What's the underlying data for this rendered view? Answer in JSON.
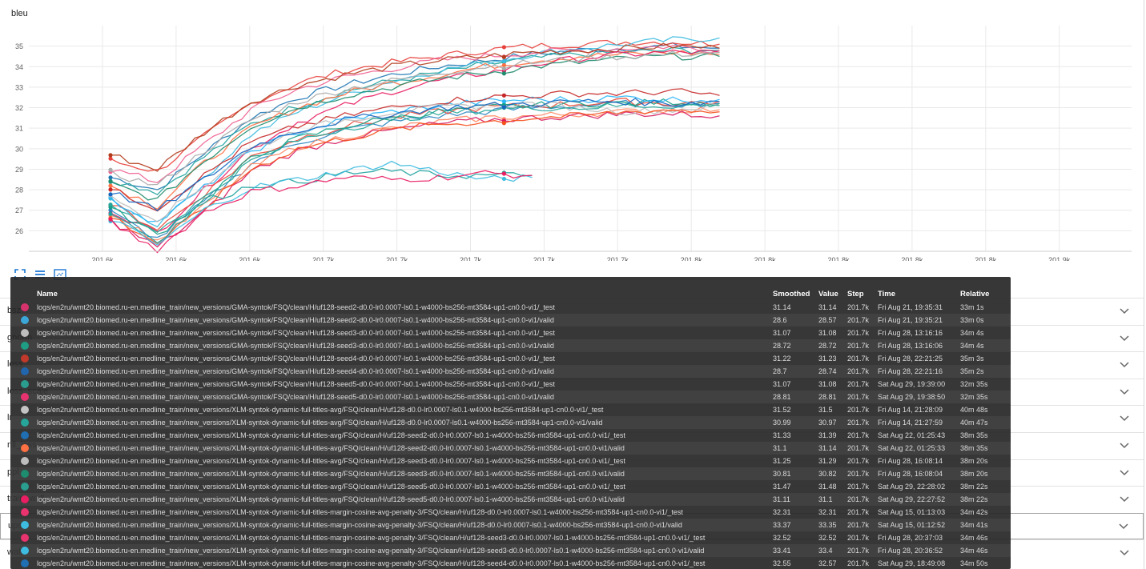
{
  "chart_title": "bleu",
  "toolbar": [
    {
      "name": "fit-domain-icon",
      "title": "Fit domain to data"
    },
    {
      "name": "toggle-legend-icon",
      "title": "Toggle legend"
    },
    {
      "name": "toggle-log-icon",
      "title": "Toggle y-axis log scale"
    }
  ],
  "chart_data": {
    "type": "line",
    "title": "bleu",
    "xlabel": "",
    "ylabel": "",
    "x_tick_labels": [
      "201.6k",
      "201.6k",
      "201.6k",
      "201.7k",
      "201.7k",
      "201.7k",
      "201.7k",
      "201.7k",
      "201.8k",
      "201.8k",
      "201.8k",
      "201.8k",
      "201.8k",
      "201.9k"
    ],
    "y_ticks": [
      26,
      27,
      28,
      29,
      30,
      31,
      32,
      33,
      34,
      35
    ],
    "ylim": [
      25.0,
      36.0
    ],
    "grid": true,
    "note": "many overlapping runs; values per series approximate",
    "series": [
      {
        "color": "#1f77b4",
        "values": [
          28.6,
          28.0,
          29.8,
          31.5,
          32.5,
          33.1,
          33.6,
          34.0,
          34.3,
          34.6,
          34.8,
          34.9,
          35.0,
          34.9
        ]
      },
      {
        "color": "#e8413c",
        "values": [
          29.4,
          28.9,
          30.6,
          32.2,
          33.2,
          33.8,
          34.2,
          34.5,
          34.8,
          35.0,
          35.1,
          35.2,
          35.2,
          35.1
        ]
      },
      {
        "color": "#20a39e",
        "values": [
          28.5,
          27.9,
          29.6,
          31.2,
          32.1,
          32.8,
          33.3,
          33.7,
          34.1,
          34.4,
          34.6,
          34.7,
          34.8,
          34.8
        ]
      },
      {
        "color": "#3dbbe0",
        "values": [
          27.4,
          26.3,
          28.6,
          30.7,
          31.8,
          32.6,
          33.3,
          33.8,
          34.2,
          34.6,
          34.9,
          35.1,
          35.3,
          35.4
        ]
      },
      {
        "color": "#f06292",
        "values": [
          29.0,
          28.4,
          30.2,
          31.9,
          32.9,
          33.5,
          33.9,
          34.3,
          34.5,
          34.7,
          34.8,
          34.9,
          35.0,
          34.8
        ]
      },
      {
        "color": "#ff7043",
        "values": [
          28.2,
          27.2,
          29.3,
          31.0,
          32.0,
          32.7,
          33.2,
          33.6,
          34.0,
          34.3,
          34.5,
          34.6,
          34.7,
          34.6
        ]
      },
      {
        "color": "#b23c1c",
        "values": [
          29.7,
          29.0,
          30.8,
          32.3,
          33.1,
          33.6,
          34.0,
          34.3,
          34.5,
          34.7,
          34.8,
          34.9,
          35.0,
          34.9
        ]
      },
      {
        "color": "#e91e63",
        "values": [
          27.0,
          25.9,
          28.0,
          30.0,
          31.3,
          32.1,
          32.8,
          33.3,
          33.7,
          34.1,
          34.4,
          34.6,
          34.7,
          34.7
        ]
      },
      {
        "color": "#1e8c6e",
        "values": [
          28.3,
          27.5,
          29.4,
          31.1,
          32.0,
          32.6,
          33.0,
          33.4,
          33.7,
          34.0,
          34.2,
          34.4,
          34.5,
          34.5
        ]
      },
      {
        "color": "#aaaaaa",
        "values": [
          28.8,
          28.2,
          29.9,
          31.4,
          32.3,
          32.9,
          33.3,
          33.7,
          34.0,
          34.2,
          34.4,
          34.5,
          34.6,
          34.7
        ]
      },
      {
        "color": "#2e86c1",
        "values": [
          26.9,
          25.6,
          27.4,
          29.3,
          30.3,
          30.9,
          31.3,
          31.6,
          31.8,
          32.0,
          32.1,
          32.2,
          32.2,
          32.2
        ]
      },
      {
        "color": "#e74c3c",
        "values": [
          27.3,
          26.1,
          27.8,
          29.6,
          30.5,
          31.1,
          31.5,
          31.8,
          32.0,
          32.1,
          32.2,
          32.3,
          32.2,
          32.3
        ]
      },
      {
        "color": "#16a085",
        "values": [
          27.1,
          25.8,
          27.5,
          29.5,
          30.5,
          31.1,
          31.5,
          31.8,
          32.0,
          32.1,
          32.2,
          32.2,
          32.3,
          32.2
        ]
      },
      {
        "color": "#ff8a65",
        "values": [
          26.8,
          25.5,
          27.2,
          29.1,
          30.1,
          30.6,
          31.0,
          31.3,
          31.5,
          31.6,
          31.7,
          31.8,
          31.9,
          31.9
        ]
      },
      {
        "color": "#29b6f6",
        "values": [
          27.5,
          26.4,
          28.1,
          29.9,
          30.8,
          31.4,
          31.8,
          32.1,
          32.3,
          32.4,
          32.4,
          32.5,
          32.4,
          32.4
        ]
      },
      {
        "color": "#c62828",
        "values": [
          28.0,
          27.1,
          28.7,
          30.3,
          31.1,
          31.6,
          32.0,
          32.3,
          32.5,
          32.6,
          32.7,
          32.7,
          32.8,
          32.6
        ]
      },
      {
        "color": "#d81b60",
        "values": [
          26.5,
          25.2,
          26.9,
          28.9,
          29.9,
          30.5,
          30.9,
          31.2,
          31.4,
          31.5,
          31.6,
          31.7,
          31.7,
          31.6
        ]
      },
      {
        "color": "#bdbdbd",
        "values": [
          27.6,
          26.6,
          28.2,
          30.0,
          30.9,
          31.4,
          31.8,
          32.0,
          32.1,
          32.2,
          32.0,
          31.8,
          31.9,
          32.1
        ]
      },
      {
        "color": "#26a69a",
        "values": [
          27.2,
          26.0,
          27.6,
          29.4,
          30.4,
          31.0,
          31.4,
          31.7,
          31.9,
          32.0,
          32.0,
          32.1,
          32.1,
          32.1
        ]
      },
      {
        "color": "#f4511e",
        "values": [
          26.7,
          25.4,
          27.1,
          29.0,
          30.0,
          30.5,
          30.9,
          31.2,
          31.3,
          31.5,
          31.6,
          31.8,
          31.9,
          31.8
        ]
      },
      {
        "color": "#1565c0",
        "values": [
          27.9,
          27.0,
          28.5,
          30.1,
          30.9,
          31.4,
          31.7,
          32.0,
          32.1,
          32.2,
          32.3,
          32.3,
          32.2,
          32.3
        ]
      },
      {
        "color": "#20a39e",
        "values": [
          26.9,
          25.5,
          27.4,
          28.2,
          28.4,
          28.8,
          28.9,
          28.7,
          28.7,
          28.7
        ]
      },
      {
        "color": "#3dbbe0",
        "values": [
          26.6,
          25.3,
          27.0,
          28.1,
          28.5,
          28.9,
          29.3,
          28.9,
          28.5,
          28.6
        ]
      },
      {
        "color": "#e91e63",
        "values": [
          26.4,
          25.1,
          26.9,
          27.9,
          28.2,
          28.6,
          28.5,
          28.6,
          28.8,
          28.7
        ]
      }
    ]
  },
  "metric_rows": [
    {
      "label": "bsz",
      "active": false
    },
    {
      "label": "gnorm",
      "active": false
    },
    {
      "label": "loss",
      "active": false
    },
    {
      "label": "loss_scale",
      "active": false
    },
    {
      "label": "lr",
      "active": false
    },
    {
      "label": "nll_loss",
      "active": false
    },
    {
      "label": "ppl",
      "active": false
    },
    {
      "label": "train_wall",
      "active": false
    },
    {
      "label": "ups",
      "active": true
    },
    {
      "label": "wall",
      "active": false
    }
  ],
  "tooltip": {
    "headers": {
      "name": "Name",
      "smoothed": "Smoothed",
      "value": "Value",
      "step": "Step",
      "time": "Time",
      "relative": "Relative"
    },
    "rows": [
      {
        "color": "#d6336c",
        "name": "logs/en2ru/wmt20.biomed.ru-en.medline_train/new_versions/GMA-syntok/FSQ/clean/H/uf128-seed2-d0.0-lr0.0007-ls0.1-w4000-bs256-mt3584-up1-cn0.0-vi1/_test",
        "smoothed": "31.14",
        "value": "31.14",
        "step": "201.7k",
        "time": "Fri Aug 21, 19:35:31",
        "relative": "33m 1s"
      },
      {
        "color": "#3ba7d9",
        "name": "logs/en2ru/wmt20.biomed.ru-en.medline_train/new_versions/GMA-syntok/FSQ/clean/H/uf128-seed2-d0.0-lr0.0007-ls0.1-w4000-bs256-mt3584-up1-cn0.0-vi1/valid",
        "smoothed": "28.6",
        "value": "28.57",
        "step": "201.7k",
        "time": "Fri Aug 21, 19:35:21",
        "relative": "33m 0s"
      },
      {
        "color": "#bdbdbd",
        "name": "logs/en2ru/wmt20.biomed.ru-en.medline_train/new_versions/GMA-syntok/FSQ/clean/H/uf128-seed3-d0.0-lr0.0007-ls0.1-w4000-bs256-mt3584-up1-cn0.0-vi1/_test",
        "smoothed": "31.07",
        "value": "31.08",
        "step": "201.7k",
        "time": "Fri Aug 28, 13:16:16",
        "relative": "34m 4s"
      },
      {
        "color": "#1e9c84",
        "name": "logs/en2ru/wmt20.biomed.ru-en.medline_train/new_versions/GMA-syntok/FSQ/clean/H/uf128-seed3-d0.0-lr0.0007-ls0.1-w4000-bs256-mt3584-up1-cn0.0-vi1/valid",
        "smoothed": "28.72",
        "value": "28.72",
        "step": "201.7k",
        "time": "Fri Aug 28, 13:16:06",
        "relative": "34m 4s"
      },
      {
        "color": "#c0392b",
        "name": "logs/en2ru/wmt20.biomed.ru-en.medline_train/new_versions/GMA-syntok/FSQ/clean/H/uf128-seed4-d0.0-lr0.0007-ls0.1-w4000-bs256-mt3584-up1-cn0.0-vi1/_test",
        "smoothed": "31.22",
        "value": "31.23",
        "step": "201.7k",
        "time": "Fri Aug 28, 22:21:25",
        "relative": "35m 3s"
      },
      {
        "color": "#2166ac",
        "name": "logs/en2ru/wmt20.biomed.ru-en.medline_train/new_versions/GMA-syntok/FSQ/clean/H/uf128-seed4-d0.0-lr0.0007-ls0.1-w4000-bs256-mt3584-up1-cn0.0-vi1/valid",
        "smoothed": "28.7",
        "value": "28.74",
        "step": "201.7k",
        "time": "Fri Aug 28, 22:21:16",
        "relative": "35m 2s"
      },
      {
        "color": "#2a9d8f",
        "name": "logs/en2ru/wmt20.biomed.ru-en.medline_train/new_versions/GMA-syntok/FSQ/clean/H/uf128-seed5-d0.0-lr0.0007-ls0.1-w4000-bs256-mt3584-up1-cn0.0-vi1/_test",
        "smoothed": "31.07",
        "value": "31.08",
        "step": "201.7k",
        "time": "Sat Aug 29, 19:39:00",
        "relative": "32m 35s"
      },
      {
        "color": "#e6336f",
        "name": "logs/en2ru/wmt20.biomed.ru-en.medline_train/new_versions/GMA-syntok/FSQ/clean/H/uf128-seed5-d0.0-lr0.0007-ls0.1-w4000-bs256-mt3584-up1-cn0.0-vi1/valid",
        "smoothed": "28.81",
        "value": "28.81",
        "step": "201.7k",
        "time": "Sat Aug 29, 19:38:50",
        "relative": "32m 35s"
      },
      {
        "color": "#c4c4c4",
        "name": "logs/en2ru/wmt20.biomed.ru-en.medline_train/new_versions/XLM-syntok-dynamic-full-titles-avg/FSQ/clean/H/uf128-d0.0-lr0.0007-ls0.1-w4000-bs256-mt3584-up1-cn0.0-vi1/_test",
        "smoothed": "31.52",
        "value": "31.5",
        "step": "201.7k",
        "time": "Fri Aug 14, 21:28:09",
        "relative": "40m 48s"
      },
      {
        "color": "#26a69a",
        "name": "logs/en2ru/wmt20.biomed.ru-en.medline_train/new_versions/XLM-syntok-dynamic-full-titles-avg/FSQ/clean/H/uf128-d0.0-lr0.0007-ls0.1-w4000-bs256-mt3584-up1-cn0.0-vi1/valid",
        "smoothed": "30.99",
        "value": "30.97",
        "step": "201.7k",
        "time": "Fri Aug 14, 21:27:59",
        "relative": "40m 47s"
      },
      {
        "color": "#1f6fb2",
        "name": "logs/en2ru/wmt20.biomed.ru-en.medline_train/new_versions/XLM-syntok-dynamic-full-titles-avg/FSQ/clean/H/uf128-seed2-d0.0-lr0.0007-ls0.1-w4000-bs256-mt3584-up1-cn0.0-vi1/_test",
        "smoothed": "31.33",
        "value": "31.39",
        "step": "201.7k",
        "time": "Sat Aug 22, 01:25:43",
        "relative": "38m 35s"
      },
      {
        "color": "#ff7043",
        "name": "logs/en2ru/wmt20.biomed.ru-en.medline_train/new_versions/XLM-syntok-dynamic-full-titles-avg/FSQ/clean/H/uf128-seed2-d0.0-lr0.0007-ls0.1-w4000-bs256-mt3584-up1-cn0.0-vi1/valid",
        "smoothed": "31.1",
        "value": "31.14",
        "step": "201.7k",
        "time": "Sat Aug 22, 01:25:33",
        "relative": "38m 35s"
      },
      {
        "color": "#bdbdbd",
        "name": "logs/en2ru/wmt20.biomed.ru-en.medline_train/new_versions/XLM-syntok-dynamic-full-titles-avg/FSQ/clean/H/uf128-seed3-d0.0-lr0.0007-ls0.1-w4000-bs256-mt3584-up1-cn0.0-vi1/_test",
        "smoothed": "31.25",
        "value": "31.29",
        "step": "201.7k",
        "time": "Fri Aug 28, 16:08:14",
        "relative": "38m 20s"
      },
      {
        "color": "#1e8c6e",
        "name": "logs/en2ru/wmt20.biomed.ru-en.medline_train/new_versions/XLM-syntok-dynamic-full-titles-avg/FSQ/clean/H/uf128-seed3-d0.0-lr0.0007-ls0.1-w4000-bs256-mt3584-up1-cn0.0-vi1/valid",
        "smoothed": "30.81",
        "value": "30.82",
        "step": "201.7k",
        "time": "Fri Aug 28, 16:08:04",
        "relative": "38m 20s"
      },
      {
        "color": "#2a9d8f",
        "name": "logs/en2ru/wmt20.biomed.ru-en.medline_train/new_versions/XLM-syntok-dynamic-full-titles-avg/FSQ/clean/H/uf128-seed5-d0.0-lr0.0007-ls0.1-w4000-bs256-mt3584-up1-cn0.0-vi1/_test",
        "smoothed": "31.47",
        "value": "31.48",
        "step": "201.7k",
        "time": "Sat Aug 29, 22:28:02",
        "relative": "38m 22s"
      },
      {
        "color": "#e91e63",
        "name": "logs/en2ru/wmt20.biomed.ru-en.medline_train/new_versions/XLM-syntok-dynamic-full-titles-avg/FSQ/clean/H/uf128-seed5-d0.0-lr0.0007-ls0.1-w4000-bs256-mt3584-up1-cn0.0-vi1/valid",
        "smoothed": "31.11",
        "value": "31.1",
        "step": "201.7k",
        "time": "Sat Aug 29, 22:27:52",
        "relative": "38m 22s"
      },
      {
        "color": "#e8336f",
        "name": "logs/en2ru/wmt20.biomed.ru-en.medline_train/new_versions/XLM-syntok-dynamic-full-titles-margin-cosine-avg-penalty-3/FSQ/clean/H/uf128-d0.0-lr0.0007-ls0.1-w4000-bs256-mt3584-up1-cn0.0-vi1/_test",
        "smoothed": "32.31",
        "value": "32.31",
        "step": "201.7k",
        "time": "Sat Aug 15, 01:13:03",
        "relative": "34m 42s"
      },
      {
        "color": "#3dbbe0",
        "name": "logs/en2ru/wmt20.biomed.ru-en.medline_train/new_versions/XLM-syntok-dynamic-full-titles-margin-cosine-avg-penalty-3/FSQ/clean/H/uf128-d0.0-lr0.0007-ls0.1-w4000-bs256-mt3584-up1-cn0.0-vi1/valid",
        "smoothed": "33.37",
        "value": "33.35",
        "step": "201.7k",
        "time": "Sat Aug 15, 01:12:52",
        "relative": "34m 41s"
      },
      {
        "color": "#e8336f",
        "name": "logs/en2ru/wmt20.biomed.ru-en.medline_train/new_versions/XLM-syntok-dynamic-full-titles-margin-cosine-avg-penalty-3/FSQ/clean/H/uf128-seed3-d0.0-lr0.0007-ls0.1-w4000-bs256-mt3584-up1-cn0.0-vi1/_test",
        "smoothed": "32.52",
        "value": "32.52",
        "step": "201.7k",
        "time": "Fri Aug 28, 20:37:03",
        "relative": "34m 46s"
      },
      {
        "color": "#3dbbe0",
        "name": "logs/en2ru/wmt20.biomed.ru-en.medline_train/new_versions/XLM-syntok-dynamic-full-titles-margin-cosine-avg-penalty-3/FSQ/clean/H/uf128-seed3-d0.0-lr0.0007-ls0.1-w4000-bs256-mt3584-up1-cn0.0-vi1/valid",
        "smoothed": "33.41",
        "value": "33.4",
        "step": "201.7k",
        "time": "Fri Aug 28, 20:36:52",
        "relative": "34m 46s"
      },
      {
        "color": "#1f6fb2",
        "name": "logs/en2ru/wmt20.biomed.ru-en.medline_train/new_versions/XLM-syntok-dynamic-full-titles-margin-cosine-avg-penalty-3/FSQ/clean/H/uf128-seed4-d0.0-lr0.0007-ls0.1-w4000-bs256-mt3584-up1-cn0.0-vi1/_test",
        "smoothed": "32.55",
        "value": "32.57",
        "step": "201.7k",
        "time": "Sat Aug 29, 18:49:08",
        "relative": "34m 50s"
      }
    ]
  }
}
